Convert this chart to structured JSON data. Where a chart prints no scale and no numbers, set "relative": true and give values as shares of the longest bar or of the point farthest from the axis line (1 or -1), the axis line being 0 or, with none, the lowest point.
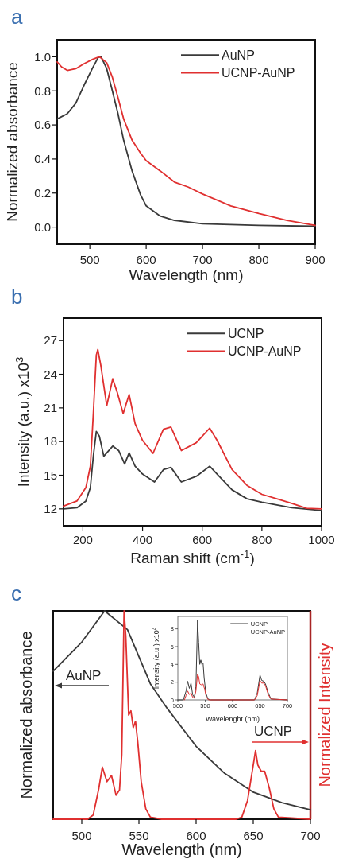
{
  "chart_data": [
    {
      "type": "line",
      "title": "a",
      "xlabel": "Wavelength (nm)",
      "ylabel": "Normalized absorbance",
      "xlim": [
        442,
        900
      ],
      "xticks": [
        500,
        600,
        700,
        800,
        900
      ],
      "ylim": [
        -0.1,
        1.1
      ],
      "yticks": [
        {
          "value": 0,
          "label": "0.0"
        },
        0.2,
        0.4,
        0.6,
        0.8,
        {
          "value": 1,
          "label": "1.0"
        }
      ],
      "legend": "top right",
      "series": [
        {
          "name": "AuNP",
          "color": "#3a3a3a",
          "x": [
            442,
            460,
            475,
            490,
            505,
            515,
            520,
            530,
            540,
            550,
            560,
            575,
            590,
            600,
            625,
            650,
            700,
            750,
            800,
            900
          ],
          "values": [
            0.635,
            0.666,
            0.727,
            0.835,
            0.935,
            0.997,
            1.0,
            0.93,
            0.8,
            0.666,
            0.51,
            0.33,
            0.19,
            0.125,
            0.065,
            0.04,
            0.02,
            0.015,
            0.01,
            0.005
          ]
        },
        {
          "name": "UCNP-AuNP",
          "color": "#e03030",
          "x": [
            442,
            450,
            460,
            475,
            490,
            505,
            517,
            530,
            540,
            550,
            560,
            575,
            590,
            600,
            625,
            650,
            675,
            700,
            750,
            800,
            850,
            900
          ],
          "values": [
            0.97,
            0.94,
            0.92,
            0.93,
            0.96,
            0.985,
            1.0,
            0.965,
            0.88,
            0.76,
            0.635,
            0.51,
            0.435,
            0.39,
            0.33,
            0.265,
            0.235,
            0.195,
            0.125,
            0.08,
            0.04,
            0.01
          ]
        }
      ]
    },
    {
      "type": "line",
      "title": "b",
      "xlabel": "Raman shift (cm$^{-1}$)",
      "ylabel": "Intensity (a.u.) x10$^{3}$",
      "xlim": [
        135,
        1000
      ],
      "xticks": [
        200,
        400,
        600,
        800,
        1000
      ],
      "ylim": [
        10.5,
        29
      ],
      "yticks": [
        12,
        15,
        18,
        21,
        24,
        27
      ],
      "legend": "top right",
      "series": [
        {
          "name": "UCNP",
          "color": "#3a3a3a",
          "x": [
            135,
            180,
            210,
            225,
            235,
            245,
            255,
            270,
            300,
            320,
            340,
            355,
            375,
            400,
            440,
            470,
            495,
            530,
            580,
            625,
            650,
            700,
            750,
            800,
            850,
            900,
            1000
          ],
          "values": [
            12.0,
            12.1,
            12.7,
            13.9,
            16.7,
            18.9,
            18.5,
            16.7,
            17.6,
            17.2,
            16.0,
            17.0,
            15.8,
            15.1,
            14.4,
            15.5,
            15.7,
            14.4,
            14.9,
            15.8,
            15.1,
            13.7,
            12.9,
            12.6,
            12.35,
            12.1,
            11.85
          ]
        },
        {
          "name": "UCNP-AuNP",
          "color": "#e03030",
          "x": [
            135,
            180,
            210,
            225,
            235,
            245,
            250,
            260,
            280,
            300,
            315,
            335,
            355,
            375,
            400,
            435,
            470,
            495,
            530,
            580,
            625,
            650,
            700,
            750,
            800,
            850,
            900,
            950,
            1000
          ],
          "values": [
            12.24,
            12.7,
            13.9,
            15.8,
            20.5,
            25.7,
            26.2,
            24.8,
            21.2,
            23.6,
            22.4,
            20.5,
            22.2,
            19.6,
            18.1,
            16.95,
            19.1,
            19.3,
            17.2,
            17.9,
            19.2,
            18.1,
            15.5,
            14.1,
            13.3,
            12.9,
            12.5,
            12.05,
            12.0
          ]
        }
      ]
    },
    {
      "type": "line",
      "title": "c",
      "xlabel": "Wavelength (nm)",
      "ylabel": "Normalized absorbance",
      "y2label": "Normalized Intensity",
      "relative": true,
      "xlim": [
        475,
        700
      ],
      "xticks": [
        500,
        550,
        600,
        650,
        700
      ],
      "annotations": [
        "AuNP",
        "UCNP"
      ],
      "series": [
        {
          "color": "#3a3a3a",
          "x": [
            475,
            500,
            520,
            540,
            550,
            560,
            575,
            600,
            625,
            650,
            675,
            700
          ],
          "values": [
            0.71,
            0.85,
            1.0,
            0.91,
            0.78,
            0.65,
            0.53,
            0.35,
            0.22,
            0.13,
            0.08,
            0.045
          ]
        },
        {
          "color": "#e03030",
          "axis": "y2",
          "x": [
            475,
            505,
            510,
            515,
            518,
            522,
            526,
            530,
            533,
            535,
            537,
            538.5,
            541,
            543,
            545,
            547,
            549,
            552,
            556,
            560,
            570,
            635,
            640,
            645,
            650,
            652,
            654,
            657,
            660,
            664,
            668,
            672,
            700
          ],
          "values": [
            0,
            0,
            0.02,
            0.15,
            0.25,
            0.18,
            0.21,
            0.115,
            0.14,
            0.31,
            1.0,
            0.88,
            0.5,
            0.52,
            0.44,
            0.47,
            0.37,
            0.18,
            0.05,
            0.01,
            0,
            0,
            0.01,
            0.09,
            0.26,
            0.33,
            0.26,
            0.23,
            0.23,
            0.15,
            0.05,
            0.01,
            0
          ]
        }
      ]
    },
    {
      "type": "line",
      "xlabel": "Wavelenght (nm)",
      "ylabel": "Intensity (a.u.) x10$^{4}$",
      "xlim": [
        500,
        700
      ],
      "xticks": [
        500,
        550,
        600,
        650,
        700
      ],
      "ylim": [
        0,
        9.4
      ],
      "yticks": [
        0,
        2,
        4,
        6,
        8
      ],
      "legend": "top right",
      "series": [
        {
          "name": "UCNP",
          "color": "#3a3a3a",
          "x": [
            500,
            510,
            515,
            518,
            521,
            524,
            527,
            530,
            533,
            536,
            538,
            540,
            542,
            544,
            546,
            548,
            551,
            555,
            560,
            640,
            645,
            650,
            653,
            657,
            660,
            665,
            670,
            700
          ],
          "values": [
            0,
            0,
            1.0,
            2.1,
            1.3,
            1.9,
            0.6,
            0.3,
            1.5,
            9.0,
            6.5,
            4.0,
            4.5,
            4.0,
            4.2,
            2.5,
            0.8,
            0.1,
            0,
            0,
            0.8,
            2.8,
            2.2,
            2.1,
            1.8,
            0.8,
            0.1,
            0
          ]
        },
        {
          "name": "UCNP-AuNP",
          "color": "#e03030",
          "x": [
            512,
            515,
            518,
            521,
            524,
            527,
            530,
            533,
            536,
            538,
            540,
            543,
            546,
            549,
            552,
            556,
            640,
            645,
            650,
            653,
            657,
            660,
            665,
            670,
            700
          ],
          "values": [
            0,
            0.5,
            1.0,
            0.6,
            0.8,
            0.3,
            0.2,
            1.0,
            2.9,
            2.6,
            1.8,
            1.7,
            1.8,
            1.2,
            0.3,
            0,
            0,
            0.5,
            2.2,
            1.9,
            1.9,
            1.6,
            0.6,
            0.1,
            0
          ]
        }
      ]
    }
  ]
}
